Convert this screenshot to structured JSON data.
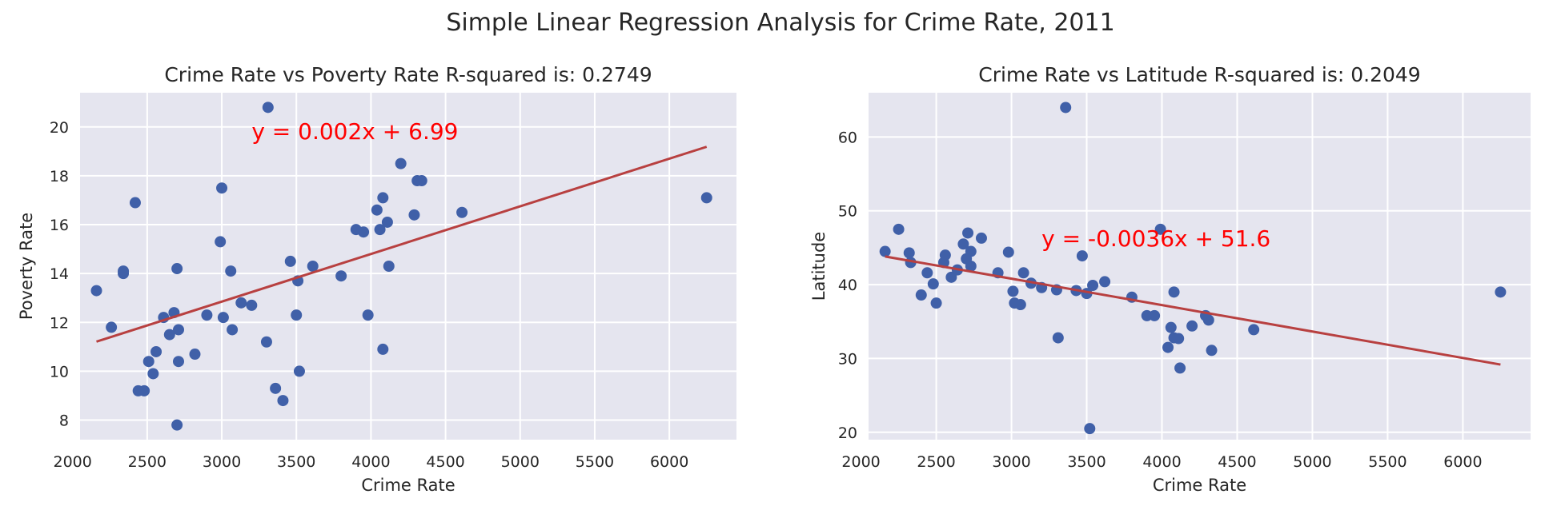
{
  "suptitle": "Simple Linear Regression Analysis for Crime Rate, 2011",
  "colors": {
    "background": "#ffffff",
    "axes_face": "#e5e5ef",
    "grid": "#ffffff",
    "points": "#4060a8",
    "regression_line": "#b84040",
    "equation_text": "#ff0000"
  },
  "chart_data": [
    {
      "type": "scatter",
      "title": "Crime Rate vs Poverty Rate R-squared is: 0.2749",
      "xlabel": "Crime Rate",
      "ylabel": "Poverty Rate",
      "xlim": [
        2050,
        6450
      ],
      "ylim": [
        7.2,
        21.4
      ],
      "xticks": [
        2000,
        2500,
        3000,
        3500,
        4000,
        4500,
        5000,
        5500,
        6000
      ],
      "yticks": [
        8,
        10,
        12,
        14,
        16,
        18,
        20
      ],
      "grid": true,
      "equation": "y = 0.002x + 6.99",
      "equation_pos": [
        3200,
        19.5
      ],
      "regression": {
        "slope": 0.00195,
        "intercept": 7.0,
        "x_range": [
          2160,
          6250
        ]
      },
      "points": [
        [
          2160,
          13.3
        ],
        [
          2260,
          11.8
        ],
        [
          2340,
          14.1
        ],
        [
          2340,
          14.0
        ],
        [
          2420,
          16.9
        ],
        [
          2440,
          9.2
        ],
        [
          2480,
          9.2
        ],
        [
          2510,
          10.4
        ],
        [
          2540,
          9.9
        ],
        [
          2560,
          10.8
        ],
        [
          2610,
          12.2
        ],
        [
          2650,
          11.5
        ],
        [
          2680,
          12.4
        ],
        [
          2700,
          14.2
        ],
        [
          2710,
          11.7
        ],
        [
          2710,
          10.4
        ],
        [
          2700,
          7.8
        ],
        [
          2820,
          10.7
        ],
        [
          2900,
          12.3
        ],
        [
          2990,
          15.3
        ],
        [
          3000,
          17.5
        ],
        [
          3010,
          12.2
        ],
        [
          3060,
          14.1
        ],
        [
          3070,
          11.7
        ],
        [
          3130,
          12.8
        ],
        [
          3200,
          12.7
        ],
        [
          3300,
          11.2
        ],
        [
          3310,
          20.8
        ],
        [
          3360,
          9.3
        ],
        [
          3410,
          8.8
        ],
        [
          3460,
          14.5
        ],
        [
          3500,
          12.3
        ],
        [
          3510,
          13.7
        ],
        [
          3520,
          10.0
        ],
        [
          3610,
          14.3
        ],
        [
          3800,
          13.9
        ],
        [
          3900,
          15.8
        ],
        [
          3950,
          15.7
        ],
        [
          3980,
          12.3
        ],
        [
          4040,
          16.6
        ],
        [
          4060,
          15.8
        ],
        [
          4080,
          17.1
        ],
        [
          4080,
          10.9
        ],
        [
          4110,
          16.1
        ],
        [
          4120,
          14.3
        ],
        [
          4200,
          18.5
        ],
        [
          4290,
          16.4
        ],
        [
          4310,
          17.8
        ],
        [
          4340,
          17.8
        ],
        [
          4610,
          16.5
        ],
        [
          6250,
          17.1
        ]
      ]
    },
    {
      "type": "scatter",
      "title": "Crime Rate vs Latitude R-squared is: 0.2049",
      "xlabel": "Crime Rate",
      "ylabel": "Latitude",
      "xlim": [
        2050,
        6450
      ],
      "ylim": [
        19,
        66
      ],
      "xticks": [
        2000,
        2500,
        3000,
        3500,
        4000,
        4500,
        5000,
        5500,
        6000
      ],
      "yticks": [
        20,
        30,
        40,
        50,
        60
      ],
      "grid": true,
      "equation": "y = -0.0036x + 51.6",
      "equation_pos": [
        3200,
        45.2
      ],
      "regression": {
        "slope": -0.00358,
        "intercept": 51.55,
        "x_range": [
          2160,
          6250
        ]
      },
      "points": [
        [
          2160,
          44.5
        ],
        [
          2250,
          47.5
        ],
        [
          2320,
          44.3
        ],
        [
          2330,
          43.0
        ],
        [
          2400,
          38.6
        ],
        [
          2440,
          41.6
        ],
        [
          2480,
          40.1
        ],
        [
          2500,
          37.5
        ],
        [
          2550,
          43.0
        ],
        [
          2560,
          44.0
        ],
        [
          2600,
          41.0
        ],
        [
          2640,
          42.0
        ],
        [
          2680,
          45.5
        ],
        [
          2700,
          43.5
        ],
        [
          2710,
          47.0
        ],
        [
          2730,
          44.5
        ],
        [
          2730,
          42.5
        ],
        [
          2800,
          46.3
        ],
        [
          2910,
          41.6
        ],
        [
          2980,
          44.4
        ],
        [
          3010,
          39.1
        ],
        [
          3020,
          37.5
        ],
        [
          3060,
          37.3
        ],
        [
          3080,
          41.6
        ],
        [
          3130,
          40.2
        ],
        [
          3200,
          39.6
        ],
        [
          3300,
          39.3
        ],
        [
          3310,
          32.8
        ],
        [
          3360,
          64.0
        ],
        [
          3430,
          39.2
        ],
        [
          3470,
          43.9
        ],
        [
          3500,
          38.8
        ],
        [
          3520,
          20.5
        ],
        [
          3540,
          39.9
        ],
        [
          3620,
          40.4
        ],
        [
          3800,
          38.3
        ],
        [
          3900,
          35.8
        ],
        [
          3950,
          35.8
        ],
        [
          3990,
          47.5
        ],
        [
          4040,
          31.5
        ],
        [
          4060,
          34.2
        ],
        [
          4080,
          39.0
        ],
        [
          4080,
          32.8
        ],
        [
          4110,
          32.7
        ],
        [
          4120,
          28.7
        ],
        [
          4200,
          34.4
        ],
        [
          4290,
          35.8
        ],
        [
          4310,
          35.2
        ],
        [
          4330,
          31.1
        ],
        [
          4610,
          33.9
        ],
        [
          6250,
          39.0
        ]
      ]
    }
  ]
}
